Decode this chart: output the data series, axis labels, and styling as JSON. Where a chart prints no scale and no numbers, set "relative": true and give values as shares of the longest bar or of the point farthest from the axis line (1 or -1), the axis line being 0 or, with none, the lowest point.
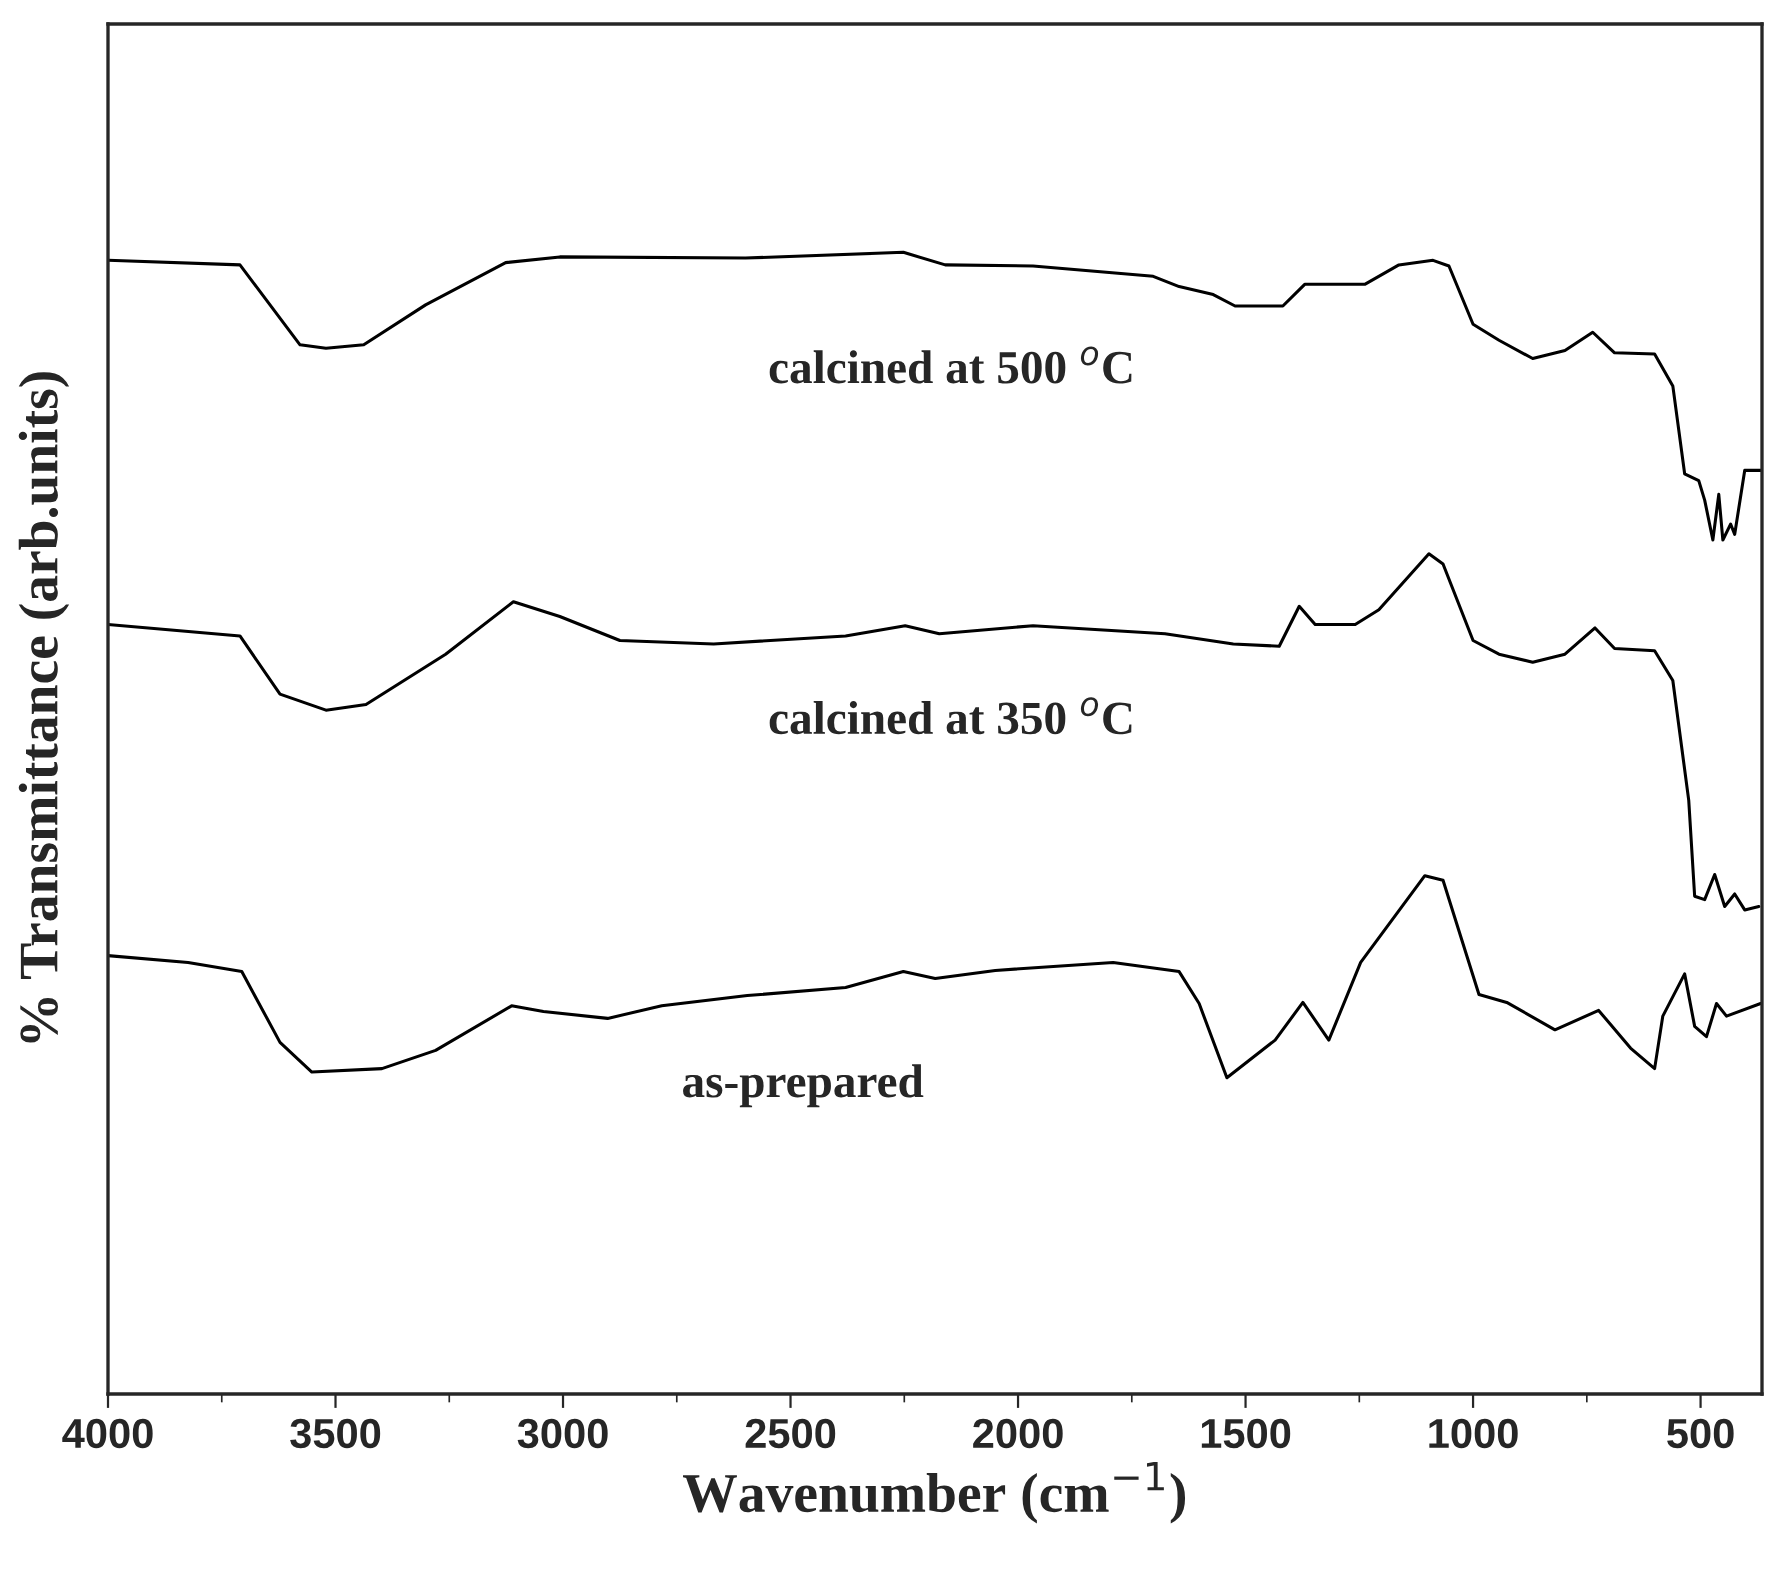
{
  "chart_data": {
    "type": "line",
    "relative": true,
    "xlabel": "Wavenumber (cm$^{−1}$)",
    "ylabel": "% Transmittance (arb.units)",
    "xlim": [
      4000,
      365
    ],
    "xticks": [
      4000,
      3500,
      3000,
      2500,
      2000,
      1500,
      1000,
      500
    ],
    "line_style": "solid",
    "annotations": [
      "calcined at 500 $^{o}$C",
      "calcined at 350 $^{o}$C",
      "as-prepared"
    ],
    "series": [
      {
        "color": "#000000",
        "x": [
          4000,
          3710,
          3578,
          3521,
          3438,
          3302,
          3126,
          3007,
          2599,
          2252,
          2160,
          1967,
          1703,
          1646,
          1571,
          1523,
          1418,
          1370,
          1238,
          1163,
          1088,
          1053,
          1000,
          943,
          869,
          798,
          737,
          689,
          601,
          561,
          535,
          504,
          491,
          473,
          460,
          451,
          434,
          425,
          403,
          368
        ],
        "values": [
          0.993,
          0.989,
          0.919,
          0.916,
          0.919,
          0.954,
          0.991,
          0.996,
          0.995,
          1.0,
          0.989,
          0.988,
          0.979,
          0.97,
          0.963,
          0.953,
          0.953,
          0.972,
          0.972,
          0.989,
          0.993,
          0.988,
          0.937,
          0.923,
          0.907,
          0.914,
          0.93,
          0.912,
          0.911,
          0.883,
          0.806,
          0.8,
          0.783,
          0.748,
          0.788,
          0.748,
          0.762,
          0.753,
          0.809,
          0.809
        ]
      },
      {
        "color": "#000000",
        "x": [
          4000,
          3710,
          3622,
          3521,
          3433,
          3258,
          3109,
          3007,
          2875,
          2669,
          2379,
          2248,
          2173,
          1967,
          1677,
          1527,
          1426,
          1382,
          1347,
          1259,
          1207,
          1097,
          1066,
          1000,
          943,
          869,
          798,
          732,
          689,
          601,
          561,
          526,
          513,
          491,
          469,
          447,
          425,
          403,
          372
        ],
        "values": [
          0.674,
          0.664,
          0.613,
          0.599,
          0.604,
          0.648,
          0.694,
          0.681,
          0.66,
          0.657,
          0.664,
          0.673,
          0.666,
          0.673,
          0.666,
          0.657,
          0.655,
          0.69,
          0.674,
          0.674,
          0.687,
          0.736,
          0.727,
          0.66,
          0.648,
          0.641,
          0.648,
          0.671,
          0.653,
          0.651,
          0.625,
          0.52,
          0.436,
          0.433,
          0.455,
          0.427,
          0.438,
          0.424,
          0.427
        ]
      },
      {
        "color": "#000000",
        "x": [
          4000,
          3824,
          3706,
          3622,
          3552,
          3398,
          3280,
          3113,
          3043,
          2902,
          2783,
          2595,
          2379,
          2252,
          2182,
          2050,
          1791,
          1646,
          1602,
          1541,
          1435,
          1374,
          1317,
          1247,
          1106,
          1066,
          987,
          926,
          820,
          724,
          654,
          601,
          583,
          535,
          513,
          487,
          465,
          443,
          368
        ],
        "values": [
          0.384,
          0.378,
          0.37,
          0.308,
          0.282,
          0.285,
          0.301,
          0.34,
          0.335,
          0.329,
          0.34,
          0.349,
          0.356,
          0.37,
          0.364,
          0.371,
          0.378,
          0.37,
          0.342,
          0.277,
          0.31,
          0.343,
          0.31,
          0.378,
          0.454,
          0.45,
          0.35,
          0.343,
          0.319,
          0.336,
          0.303,
          0.285,
          0.331,
          0.368,
          0.322,
          0.313,
          0.342,
          0.331,
          0.342
        ]
      }
    ]
  }
}
